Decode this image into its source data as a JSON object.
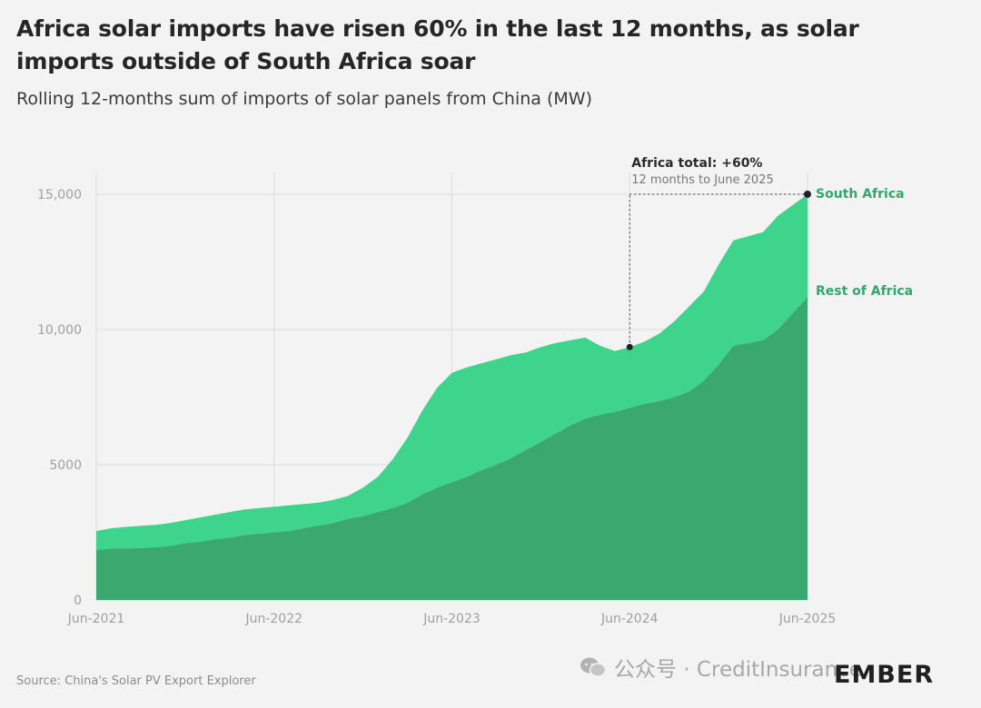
{
  "header": {
    "title": "Africa solar imports have risen 60% in the last 12 months, as solar imports outside of South Africa soar",
    "subtitle": "Rolling 12-months sum of imports of solar panels from China (MW)"
  },
  "footer": {
    "source": "Source: China's Solar PV Export Explorer",
    "brand": "EMBER",
    "watermark": "公众号 · CreditInsurance"
  },
  "colors": {
    "south_africa": "#3fd48b",
    "rest_of_africa": "#3aa86f",
    "label": "#2fa86a",
    "grid": "#dcdcdc"
  },
  "chart_data": {
    "type": "area",
    "stacked": true,
    "title": "",
    "xlabel": "",
    "ylabel": "",
    "ylim": [
      0,
      16000
    ],
    "yticks": [
      {
        "value": 0,
        "label": "0"
      },
      {
        "value": 5000,
        "label": "5000"
      },
      {
        "value": 10000,
        "label": "10,000"
      },
      {
        "value": 15000,
        "label": "15,000"
      }
    ],
    "xticks": [
      "Jun-2021",
      "Jun-2022",
      "Jun-2023",
      "Jun-2024",
      "Jun-2025"
    ],
    "x": [
      "2021-06",
      "2021-07",
      "2021-08",
      "2021-09",
      "2021-10",
      "2021-11",
      "2021-12",
      "2022-01",
      "2022-02",
      "2022-03",
      "2022-04",
      "2022-05",
      "2022-06",
      "2022-07",
      "2022-08",
      "2022-09",
      "2022-10",
      "2022-11",
      "2022-12",
      "2023-01",
      "2023-02",
      "2023-03",
      "2023-04",
      "2023-05",
      "2023-06",
      "2023-07",
      "2023-08",
      "2023-09",
      "2023-10",
      "2023-11",
      "2023-12",
      "2024-01",
      "2024-02",
      "2024-03",
      "2024-04",
      "2024-05",
      "2024-06",
      "2024-07",
      "2024-08",
      "2024-09",
      "2024-10",
      "2024-11",
      "2024-12",
      "2025-01",
      "2025-02",
      "2025-03",
      "2025-04",
      "2025-05",
      "2025-06"
    ],
    "series": [
      {
        "name": "Rest of Africa",
        "values": [
          1850,
          1900,
          1900,
          1920,
          1950,
          2000,
          2100,
          2150,
          2250,
          2300,
          2400,
          2450,
          2500,
          2550,
          2650,
          2750,
          2850,
          3000,
          3100,
          3250,
          3400,
          3600,
          3900,
          4150,
          4350,
          4550,
          4800,
          5000,
          5250,
          5550,
          5850,
          6150,
          6450,
          6700,
          6850,
          6950,
          7100,
          7250,
          7350,
          7500,
          7700,
          8100,
          8700,
          9400,
          9500,
          9600,
          10000,
          10600,
          11200
        ]
      },
      {
        "name": "South Africa",
        "values": [
          700,
          750,
          800,
          820,
          830,
          850,
          850,
          900,
          900,
          950,
          950,
          950,
          950,
          950,
          900,
          850,
          850,
          850,
          1050,
          1300,
          1800,
          2400,
          3100,
          3700,
          4050,
          4050,
          3950,
          3900,
          3800,
          3600,
          3500,
          3350,
          3150,
          3000,
          2550,
          2250,
          2250,
          2300,
          2500,
          2800,
          3150,
          3300,
          3700,
          3900,
          3950,
          4000,
          4200,
          4000,
          3800
        ]
      }
    ],
    "labels": {
      "south_africa": "South Africa",
      "rest_of_africa": "Rest of Africa"
    },
    "annotation": {
      "title": "Africa total: +60%",
      "subtitle": "12 months to June 2025"
    },
    "grid": true
  }
}
